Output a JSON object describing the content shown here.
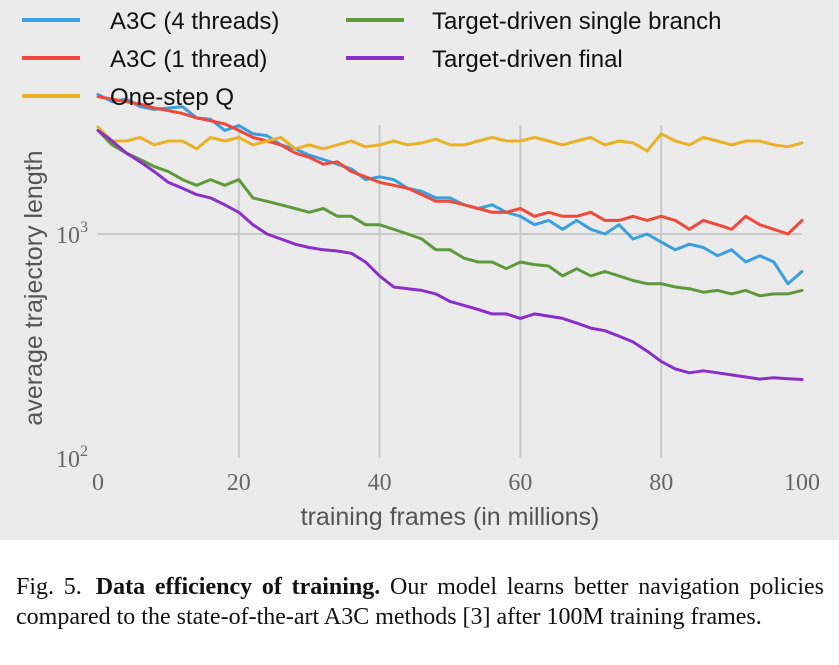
{
  "chart_data": {
    "type": "line",
    "title": "",
    "xlabel": "training frames (in millions)",
    "ylabel": "average trajectory length",
    "xlim": [
      0,
      100
    ],
    "ylim": [
      100,
      10000
    ],
    "yscale": "log",
    "x_ticks": [
      0,
      20,
      40,
      60,
      80,
      100
    ],
    "x_tick_labels": [
      "0",
      "20",
      "40",
      "60",
      "80",
      "100"
    ],
    "y_ticks": [
      100,
      1000
    ],
    "y_tick_labels": [
      {
        "base": "10",
        "exp": "2"
      },
      {
        "base": "10",
        "exp": "3"
      }
    ],
    "grid": true,
    "legend_position": "top",
    "x": [
      0,
      2,
      4,
      6,
      8,
      10,
      12,
      14,
      16,
      18,
      20,
      22,
      24,
      26,
      28,
      30,
      32,
      34,
      36,
      38,
      40,
      42,
      44,
      46,
      48,
      50,
      52,
      54,
      56,
      58,
      60,
      62,
      64,
      66,
      68,
      70,
      72,
      74,
      76,
      78,
      80,
      82,
      84,
      86,
      88,
      90,
      92,
      94,
      96,
      98,
      100
    ],
    "series": [
      {
        "name": "A3C (4 threads)",
        "color": "#3a9fe0",
        "values": [
          4200,
          3900,
          4000,
          3700,
          3600,
          3650,
          3700,
          3300,
          3250,
          2900,
          3050,
          2800,
          2750,
          2500,
          2400,
          2250,
          2150,
          2050,
          1950,
          1750,
          1800,
          1750,
          1600,
          1550,
          1450,
          1450,
          1350,
          1300,
          1350,
          1250,
          1200,
          1100,
          1150,
          1050,
          1150,
          1050,
          1000,
          1100,
          950,
          1000,
          920,
          850,
          900,
          870,
          800,
          850,
          750,
          800,
          750,
          600,
          680
        ]
      },
      {
        "name": "A3C (1 thread)",
        "color": "#f0483a",
        "values": [
          4100,
          4000,
          3900,
          3800,
          3650,
          3550,
          3450,
          3300,
          3200,
          3100,
          2900,
          2700,
          2600,
          2500,
          2300,
          2200,
          2050,
          2100,
          1900,
          1800,
          1700,
          1650,
          1600,
          1500,
          1400,
          1400,
          1350,
          1300,
          1250,
          1250,
          1300,
          1200,
          1250,
          1200,
          1200,
          1250,
          1150,
          1150,
          1200,
          1150,
          1200,
          1150,
          1050,
          1150,
          1100,
          1050,
          1200,
          1100,
          1050,
          1000,
          1150
        ]
      },
      {
        "name": "One-step Q",
        "color": "#e9b227",
        "values": [
          3000,
          2600,
          2600,
          2700,
          2500,
          2600,
          2600,
          2400,
          2700,
          2600,
          2700,
          2500,
          2600,
          2700,
          2400,
          2500,
          2400,
          2500,
          2600,
          2450,
          2500,
          2600,
          2500,
          2550,
          2650,
          2500,
          2500,
          2600,
          2700,
          2600,
          2600,
          2700,
          2600,
          2500,
          2600,
          2700,
          2500,
          2600,
          2550,
          2350,
          2800,
          2600,
          2500,
          2700,
          2600,
          2500,
          2600,
          2600,
          2500,
          2450,
          2550
        ]
      },
      {
        "name": "Target-driven single branch",
        "color": "#5e9a3c",
        "values": [
          2900,
          2500,
          2300,
          2150,
          2000,
          1900,
          1750,
          1650,
          1750,
          1650,
          1750,
          1450,
          1400,
          1350,
          1300,
          1250,
          1300,
          1200,
          1200,
          1100,
          1100,
          1050,
          1000,
          950,
          850,
          850,
          780,
          750,
          750,
          700,
          750,
          730,
          720,
          650,
          700,
          650,
          680,
          650,
          620,
          600,
          600,
          580,
          570,
          550,
          560,
          540,
          560,
          530,
          540,
          540,
          560
        ]
      },
      {
        "name": "Target-driven final",
        "color": "#8b2fc9",
        "values": [
          2900,
          2600,
          2300,
          2100,
          1900,
          1700,
          1600,
          1500,
          1450,
          1350,
          1250,
          1100,
          1000,
          950,
          900,
          870,
          850,
          840,
          820,
          750,
          650,
          580,
          570,
          560,
          540,
          500,
          480,
          460,
          440,
          440,
          420,
          440,
          430,
          420,
          400,
          380,
          370,
          350,
          330,
          300,
          270,
          250,
          240,
          245,
          240,
          235,
          230,
          225,
          228,
          226,
          224
        ]
      }
    ]
  },
  "caption": {
    "label": "Fig. 5.",
    "bold": "Data efficiency of training.",
    "text": " Our model learns better navigation policies compared to the state-of-the-art A3C methods [3] after 100M training frames."
  }
}
